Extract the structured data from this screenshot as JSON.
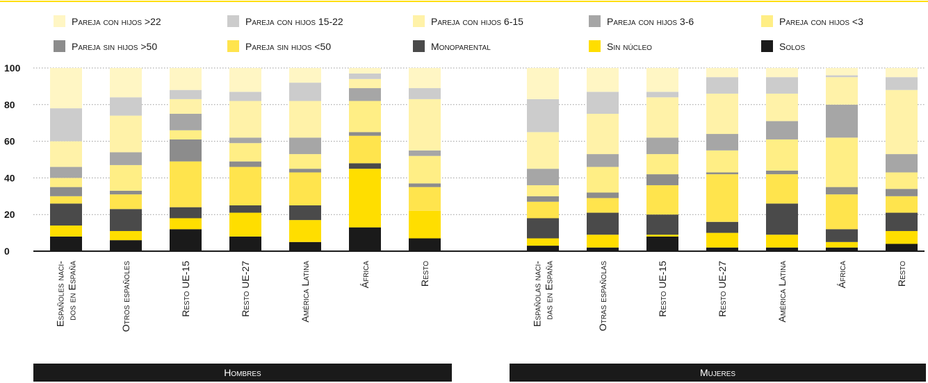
{
  "chart_data": {
    "type": "bar",
    "stacked": true,
    "grid": "dotted-horizontal",
    "legend_position": "top",
    "ylim": [
      0,
      100
    ],
    "yticks": [
      0,
      20,
      40,
      60,
      80,
      100
    ],
    "legend": [
      {
        "key": "solos",
        "label": "Solos",
        "color": "#1a1a1a"
      },
      {
        "key": "sin_nucleo",
        "label": "Sin núcleo",
        "color": "#ffde00"
      },
      {
        "key": "monoparental",
        "label": "Monoparental",
        "color": "#4a4a4a"
      },
      {
        "key": "sin_menor50",
        "label": "Pareja sin hijos <50",
        "color": "#ffe44d"
      },
      {
        "key": "sin_mayor50",
        "label": "Pareja sin hijos >50",
        "color": "#8c8c8c"
      },
      {
        "key": "con_menor3",
        "label": "Pareja con hijos <3",
        "color": "#ffee85"
      },
      {
        "key": "con_3_6",
        "label": "Pareja con hijos 3-6",
        "color": "#a6a6a6"
      },
      {
        "key": "con_6_15",
        "label": "Pareja con hijos 6-15",
        "color": "#fff2a8"
      },
      {
        "key": "con_15_22",
        "label": "Pareja con hijos 15-22",
        "color": "#cccccc"
      },
      {
        "key": "con_mayor22",
        "label": "Pareja con hijos >22",
        "color": "#fff6c4"
      }
    ],
    "legend_order": [
      "con_mayor22",
      "con_15_22",
      "con_6_15",
      "con_3_6",
      "con_menor3",
      "sin_mayor50",
      "sin_menor50",
      "monoparental",
      "sin_nucleo",
      "solos"
    ],
    "panels": [
      {
        "label": "Hombres",
        "categories": [
          [
            "Españoles naci-",
            "dos en España"
          ],
          [
            "Otros españoles"
          ],
          [
            "Resto UE-15"
          ],
          [
            "Resto UE-27"
          ],
          [
            "América Latina"
          ],
          [
            "África"
          ],
          [
            "Resto"
          ]
        ],
        "values": [
          [
            8,
            6,
            12,
            4,
            5,
            5,
            6,
            14,
            18,
            22
          ],
          [
            6,
            5,
            12,
            8,
            2,
            14,
            7,
            20,
            10,
            16
          ],
          [
            12,
            6,
            6,
            25,
            12,
            5,
            9,
            8,
            5,
            12
          ],
          [
            8,
            13,
            4,
            21,
            3,
            10,
            3,
            20,
            5,
            13
          ],
          [
            5,
            12,
            8,
            18,
            2,
            8,
            9,
            20,
            10,
            8
          ],
          [
            13,
            32,
            3,
            15,
            2,
            17,
            7,
            5,
            3,
            3
          ],
          [
            7,
            15,
            0,
            13,
            2,
            15,
            3,
            28,
            6,
            11
          ]
        ]
      },
      {
        "label": "Mujeres",
        "categories": [
          [
            "Españolas naci-",
            "das en España"
          ],
          [
            "Otras españolas"
          ],
          [
            "Resto UE-15"
          ],
          [
            "Resto UE-27"
          ],
          [
            "América Latina"
          ],
          [
            "África"
          ],
          [
            "Resto"
          ]
        ],
        "values": [
          [
            3,
            4,
            11,
            9,
            3,
            6,
            9,
            20,
            18,
            17
          ],
          [
            2,
            7,
            12,
            8,
            3,
            14,
            7,
            22,
            12,
            13
          ],
          [
            8,
            1,
            11,
            16,
            6,
            11,
            9,
            22,
            3,
            13
          ],
          [
            2,
            8,
            6,
            26,
            1,
            12,
            9,
            22,
            9,
            5
          ],
          [
            2,
            7,
            17,
            16,
            2,
            17,
            10,
            15,
            9,
            5
          ],
          [
            2,
            3,
            7,
            19,
            4,
            27,
            18,
            15,
            1,
            4
          ],
          [
            4,
            7,
            10,
            9,
            4,
            9,
            10,
            35,
            7,
            5
          ]
        ]
      }
    ]
  }
}
